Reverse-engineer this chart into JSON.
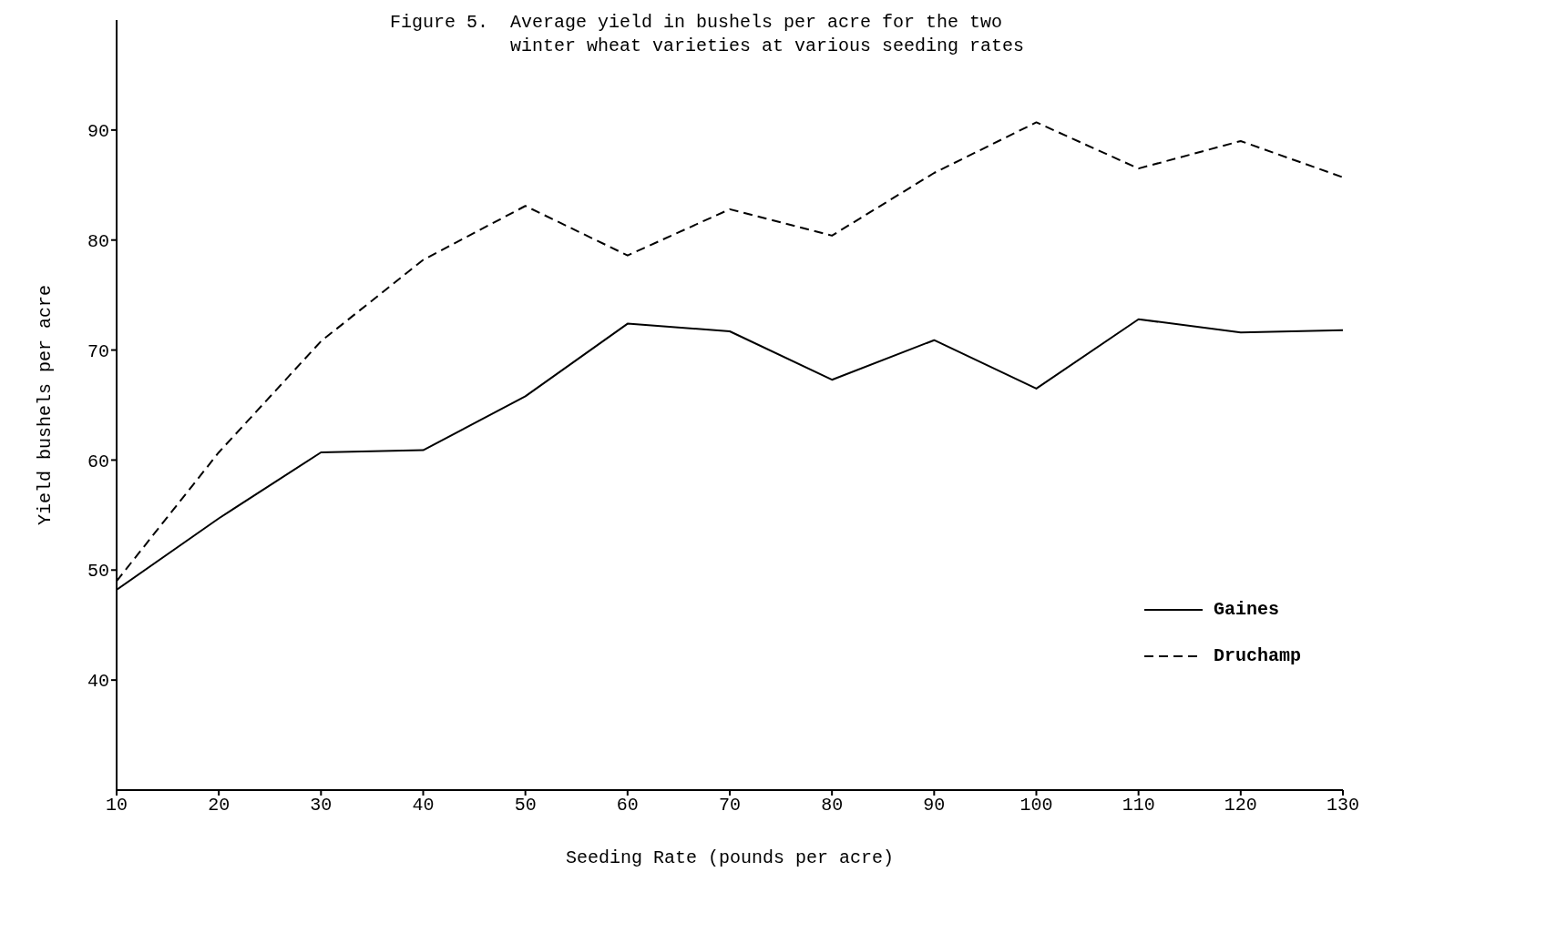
{
  "chart_data": {
    "type": "line",
    "title": "Figure 5.  Average yield in bushels per acre for the two\n           winter wheat varieties at various seeding rates",
    "xlabel": "Seeding Rate (pounds per acre)",
    "ylabel": "Yield bushels per acre",
    "x": [
      10,
      20,
      30,
      40,
      50,
      60,
      70,
      80,
      90,
      100,
      110,
      120,
      130
    ],
    "series": [
      {
        "name": "Gaines",
        "color": "#000000",
        "line_style": "solid",
        "values": [
          48.2,
          54.7,
          60.7,
          60.9,
          65.8,
          72.4,
          71.7,
          67.3,
          70.9,
          66.5,
          72.8,
          71.6,
          71.8
        ]
      },
      {
        "name": "Druchamp",
        "color": "#000000",
        "line_style": "dashed",
        "values": [
          49.0,
          60.7,
          70.8,
          78.2,
          83.1,
          78.6,
          82.8,
          80.4,
          86.1,
          90.7,
          86.5,
          89.0,
          85.7
        ]
      }
    ],
    "xlim": [
      10,
      130
    ],
    "xticks": [
      10,
      20,
      30,
      40,
      50,
      60,
      70,
      80,
      90,
      100,
      110,
      120,
      130
    ],
    "ylim": [
      30,
      100
    ],
    "yticks": [
      40,
      50,
      60,
      70,
      80,
      90
    ],
    "grid": false,
    "legend": "right",
    "marker": "none"
  }
}
